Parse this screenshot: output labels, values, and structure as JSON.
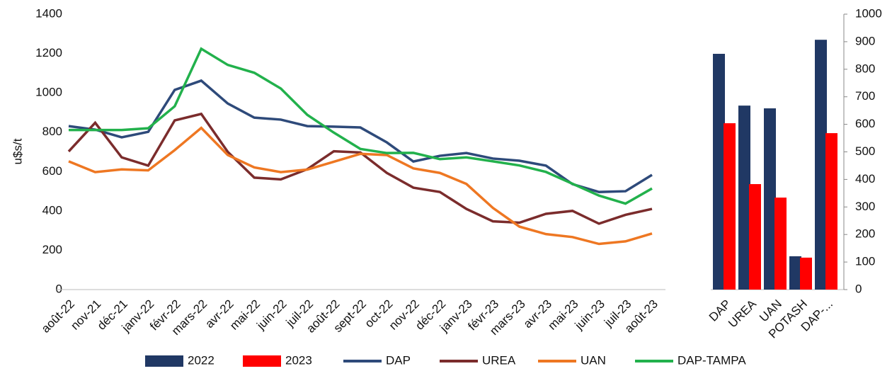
{
  "chart_data": [
    {
      "type": "line",
      "y_label": "u$s/t",
      "categories": [
        "août-22",
        "nov-21",
        "déc-21",
        "janv-22",
        "févr-22",
        "mars-22",
        "avr-22",
        "mai-22",
        "juin-22",
        "juil-22",
        "août-22",
        "sept-22",
        "oct-22",
        "nov-22",
        "déc-22",
        "janv-23",
        "févr-23",
        "mars-23",
        "avr-23",
        "mai-23",
        "juin-23",
        "juil-23",
        "août-23"
      ],
      "ylim": [
        0,
        1400
      ],
      "yticks": [
        0,
        200,
        400,
        600,
        800,
        1000,
        1200,
        1400
      ],
      "grid": false,
      "series": [
        {
          "name": "DAP",
          "color": "#2e4a7a",
          "values": [
            831,
            813,
            774,
            802,
            1015,
            1062,
            946,
            874,
            864,
            831,
            828,
            824,
            748,
            651,
            680,
            694,
            666,
            655,
            630,
            536,
            496,
            500,
            583
          ]
        },
        {
          "name": "UREA",
          "color": "#7b2c2c",
          "values": [
            702,
            848,
            672,
            630,
            860,
            893,
            700,
            569,
            560,
            612,
            703,
            697,
            593,
            518,
            496,
            410,
            347,
            340,
            385,
            400,
            335,
            380,
            410
          ]
        },
        {
          "name": "UAN",
          "color": "#ee7722",
          "values": [
            652,
            597,
            611,
            606,
            709,
            822,
            684,
            621,
            597,
            610,
            650,
            690,
            684,
            616,
            593,
            537,
            415,
            320,
            282,
            267,
            232,
            245,
            285
          ]
        },
        {
          "name": "DAP-TAMPA",
          "color": "#22b14c",
          "values": [
            811,
            811,
            811,
            820,
            932,
            1224,
            1142,
            1102,
            1022,
            888,
            798,
            715,
            694,
            695,
            663,
            672,
            652,
            631,
            598,
            538,
            478,
            437,
            514
          ]
        }
      ]
    },
    {
      "type": "bar",
      "categories": [
        "DAP",
        "UREA",
        "UAN",
        "POTASH",
        "DAP-..."
      ],
      "ylim": [
        0,
        1000
      ],
      "yticks": [
        0,
        100,
        200,
        300,
        400,
        500,
        600,
        700,
        800,
        900,
        1000
      ],
      "series": [
        {
          "name": "2022",
          "color": "#203864",
          "values": [
            856,
            668,
            658,
            121,
            907
          ]
        },
        {
          "name": "2023",
          "color": "#ff0000",
          "values": [
            604,
            383,
            334,
            116,
            568
          ]
        }
      ]
    }
  ]
}
